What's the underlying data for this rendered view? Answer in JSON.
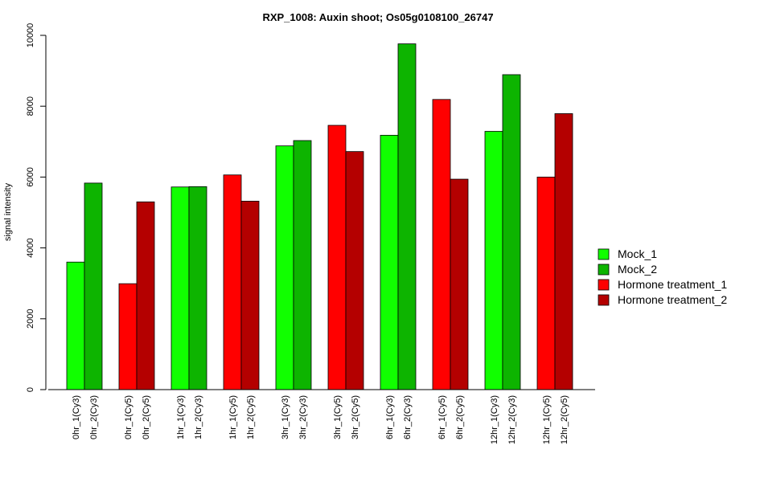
{
  "chart_data": {
    "type": "bar",
    "title": "RXP_1008: Auxin shoot; Os05g0108100_26747",
    "xlabel": "",
    "ylabel": "signal intensity",
    "ylim": [
      0,
      10000
    ],
    "yticks": [
      0,
      2000,
      4000,
      6000,
      8000,
      10000
    ],
    "grid": false,
    "legend_position": "right",
    "legend": [
      {
        "name": "Mock_1",
        "color": "#11ff00"
      },
      {
        "name": "Mock_2",
        "color": "#0db400"
      },
      {
        "name": "Hormone treatment_1",
        "color": "#ff0000"
      },
      {
        "name": "Hormone treatment_2",
        "color": "#b40000"
      }
    ],
    "bars": [
      {
        "label": "0hr_1(Cy3)",
        "value": 3600,
        "series": "Mock_1",
        "color": "#11ff00"
      },
      {
        "label": "0hr_2(Cy3)",
        "value": 5830,
        "series": "Mock_2",
        "color": "#0db400"
      },
      {
        "label": "0hr_1(Cy5)",
        "value": 2990,
        "series": "Hormone treatment_1",
        "color": "#ff0000"
      },
      {
        "label": "0hr_2(Cy5)",
        "value": 5300,
        "series": "Hormone treatment_2",
        "color": "#b40000"
      },
      {
        "label": "1hr_1(Cy3)",
        "value": 5720,
        "series": "Mock_1",
        "color": "#11ff00"
      },
      {
        "label": "1hr_2(Cy3)",
        "value": 5730,
        "series": "Mock_2",
        "color": "#0db400"
      },
      {
        "label": "1hr_1(Cy5)",
        "value": 6060,
        "series": "Hormone treatment_1",
        "color": "#ff0000"
      },
      {
        "label": "1hr_2(Cy5)",
        "value": 5320,
        "series": "Hormone treatment_2",
        "color": "#b40000"
      },
      {
        "label": "3hr_1(Cy3)",
        "value": 6880,
        "series": "Mock_1",
        "color": "#11ff00"
      },
      {
        "label": "3hr_2(Cy3)",
        "value": 7030,
        "series": "Mock_2",
        "color": "#0db400"
      },
      {
        "label": "3hr_1(Cy5)",
        "value": 7460,
        "series": "Hormone treatment_1",
        "color": "#ff0000"
      },
      {
        "label": "3hr_2(Cy5)",
        "value": 6720,
        "series": "Hormone treatment_2",
        "color": "#b40000"
      },
      {
        "label": "6hr_1(Cy3)",
        "value": 7180,
        "series": "Mock_1",
        "color": "#11ff00"
      },
      {
        "label": "6hr_2(Cy3)",
        "value": 9760,
        "series": "Mock_2",
        "color": "#0db400"
      },
      {
        "label": "6hr_1(Cy5)",
        "value": 8190,
        "series": "Hormone treatment_1",
        "color": "#ff0000"
      },
      {
        "label": "6hr_2(Cy5)",
        "value": 5940,
        "series": "Hormone treatment_2",
        "color": "#b40000"
      },
      {
        "label": "12hr_1(Cy3)",
        "value": 7290,
        "series": "Mock_1",
        "color": "#11ff00"
      },
      {
        "label": "12hr_2(Cy3)",
        "value": 8890,
        "series": "Mock_2",
        "color": "#0db400"
      },
      {
        "label": "12hr_1(Cy5)",
        "value": 6000,
        "series": "Hormone treatment_1",
        "color": "#ff0000"
      },
      {
        "label": "12hr_2(Cy5)",
        "value": 7790,
        "series": "Hormone treatment_2",
        "color": "#b40000"
      }
    ]
  }
}
